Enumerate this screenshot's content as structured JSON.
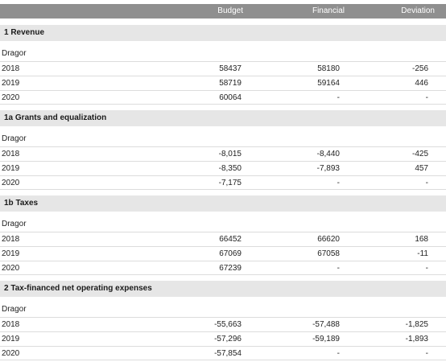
{
  "header": {
    "budget": "Budget",
    "financial": "Financial",
    "deviation": "Deviation"
  },
  "sections": [
    {
      "title": "1 Revenue",
      "group": "Dragor",
      "rows": [
        {
          "year": "2018",
          "budget": "58437",
          "financial": "58180",
          "deviation": "-256"
        },
        {
          "year": "2019",
          "budget": "58719",
          "financial": "59164",
          "deviation": "446"
        },
        {
          "year": "2020",
          "budget": "60064",
          "financial": "-",
          "deviation": "-"
        }
      ]
    },
    {
      "title": "1a Grants and equalization",
      "group": "Dragor",
      "rows": [
        {
          "year": "2018",
          "budget": "-8,015",
          "financial": "-8,440",
          "deviation": "-425"
        },
        {
          "year": "2019",
          "budget": "-8,350",
          "financial": "-7,893",
          "deviation": "457"
        },
        {
          "year": "2020",
          "budget": "-7,175",
          "financial": "-",
          "deviation": "-"
        }
      ]
    },
    {
      "title": "1b Taxes",
      "group": "Dragor",
      "rows": [
        {
          "year": "2018",
          "budget": "66452",
          "financial": "66620",
          "deviation": "168"
        },
        {
          "year": "2019",
          "budget": "67069",
          "financial": "67058",
          "deviation": "-11"
        },
        {
          "year": "2020",
          "budget": "67239",
          "financial": "-",
          "deviation": "-"
        }
      ]
    },
    {
      "title": "2 Tax-financed net operating expenses",
      "group": "Dragor",
      "rows": [
        {
          "year": "2018",
          "budget": "-55,663",
          "financial": "-57,488",
          "deviation": "-1,825"
        },
        {
          "year": "2019",
          "budget": "-57,296",
          "financial": "-59,189",
          "deviation": "-1,893"
        },
        {
          "year": "2020",
          "budget": "-57,854",
          "financial": "-",
          "deviation": "-"
        }
      ]
    }
  ]
}
